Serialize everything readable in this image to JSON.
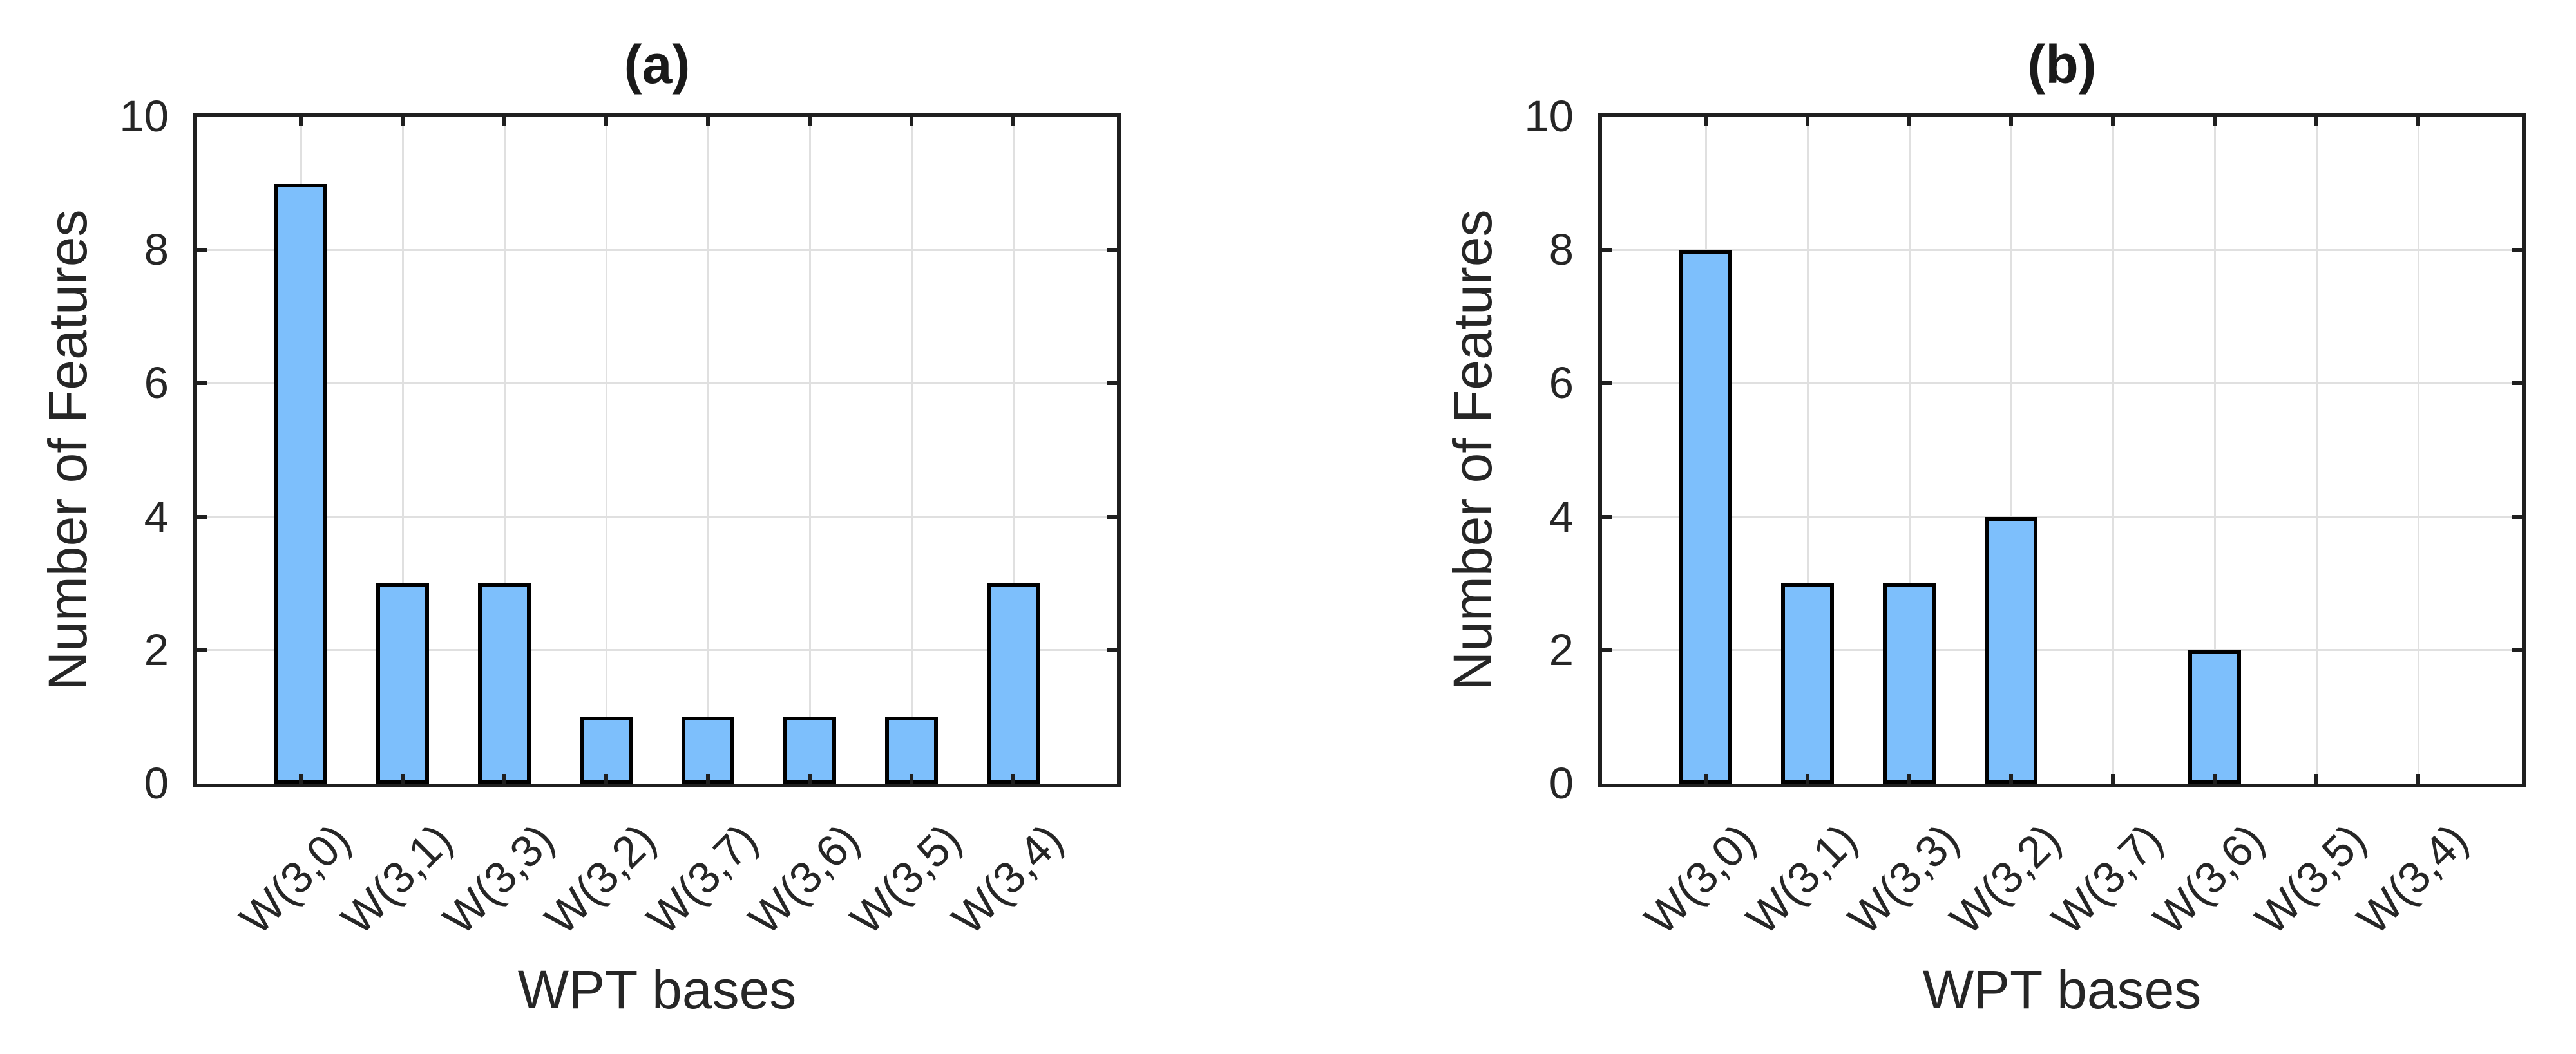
{
  "figure": {
    "background": "#ffffff",
    "text_color": "#262626",
    "axes_color": "#1f1f1f",
    "grid_color": "#e0e0e0"
  },
  "chart_data": [
    {
      "type": "bar",
      "title": "(a)",
      "categories": [
        "W(3,0)",
        "W(3,1)",
        "W(3,3)",
        "W(3,2)",
        "W(3,7)",
        "W(3,6)",
        "W(3,5)",
        "W(3,4)"
      ],
      "values": [
        9,
        3,
        3,
        1,
        1,
        1,
        1,
        3
      ],
      "xlabel": "WPT bases",
      "ylabel": "Number of Features",
      "ylim": [
        0,
        10
      ],
      "yticks": [
        0,
        2,
        4,
        6,
        8,
        10
      ],
      "grid": true,
      "legend": null,
      "bar_color": "#7DBFFC",
      "bar_edge_color": "#000000",
      "xtick_rotation": 45
    },
    {
      "type": "bar",
      "title": "(b)",
      "categories": [
        "W(3,0)",
        "W(3,1)",
        "W(3,3)",
        "W(3,2)",
        "W(3,7)",
        "W(3,6)",
        "W(3,5)",
        "W(3,4)"
      ],
      "values": [
        8,
        3,
        3,
        4,
        0,
        2,
        0,
        0
      ],
      "xlabel": "WPT bases",
      "ylabel": "Number of Features",
      "ylim": [
        0,
        10
      ],
      "yticks": [
        0,
        2,
        4,
        6,
        8,
        10
      ],
      "grid": true,
      "legend": null,
      "bar_color": "#7DBFFC",
      "bar_edge_color": "#000000",
      "xtick_rotation": 45
    }
  ]
}
